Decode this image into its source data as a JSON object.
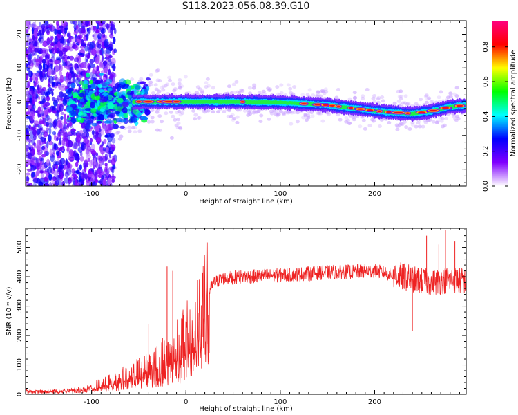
{
  "figure": {
    "title": "S118.2023.056.08.39.G10"
  },
  "chart_data": [
    {
      "type": "heatmap",
      "name": "spectrogram",
      "xlabel": "Height of straight line (km)",
      "ylabel": "Frequency (Hz)",
      "xlim": [
        -170,
        297
      ],
      "ylim": [
        -25,
        24
      ],
      "xticks": [
        -100,
        0,
        100,
        200
      ],
      "yticks": [
        -20,
        -10,
        0,
        10,
        20
      ],
      "grid": false,
      "colorbar": {
        "label": "Normalized spectral amplitude",
        "range": [
          0.0,
          0.95
        ],
        "ticks": [
          0.0,
          0.2,
          0.4,
          0.6,
          0.8
        ],
        "tick_labels": [
          "0.0",
          "0.2",
          "0.4",
          "0.6",
          "0.8"
        ],
        "colormap": [
          "#ffffff",
          "#8000ff",
          "#0000ff",
          "#00ffff",
          "#00ff00",
          "#ffff00",
          "#ff0000",
          "#ff0080"
        ]
      },
      "ridge_centerline_hz": [
        {
          "x": -100,
          "y": -0.5
        },
        {
          "x": -50,
          "y": 0.0
        },
        {
          "x": 0,
          "y": 0.0
        },
        {
          "x": 50,
          "y": 0.0
        },
        {
          "x": 100,
          "y": -0.2
        },
        {
          "x": 150,
          "y": -1.0
        },
        {
          "x": 180,
          "y": -2.0
        },
        {
          "x": 210,
          "y": -3.0
        },
        {
          "x": 240,
          "y": -3.5
        },
        {
          "x": 260,
          "y": -2.8
        },
        {
          "x": 280,
          "y": -1.5
        },
        {
          "x": 297,
          "y": -1.0
        }
      ]
    },
    {
      "type": "line",
      "name": "snr",
      "xlabel": "Height of straight line (km)",
      "ylabel": "SNR (10 * v/v)",
      "xlim": [
        -170,
        297
      ],
      "ylim": [
        0,
        565
      ],
      "xticks": [
        -100,
        0,
        100,
        200
      ],
      "yticks": [
        0,
        100,
        200,
        300,
        400,
        500
      ],
      "grid": false,
      "series": [
        {
          "color": "#ee2222",
          "envelope": [
            {
              "x": -170,
              "y": 12
            },
            {
              "x": -140,
              "y": 12
            },
            {
              "x": -120,
              "y": 15
            },
            {
              "x": -100,
              "y": 25
            },
            {
              "x": -80,
              "y": 45
            },
            {
              "x": -60,
              "y": 70
            },
            {
              "x": -40,
              "y": 95
            },
            {
              "x": -20,
              "y": 140
            },
            {
              "x": -10,
              "y": 175
            },
            {
              "x": 0,
              "y": 200
            },
            {
              "x": 10,
              "y": 250
            },
            {
              "x": 20,
              "y": 330
            },
            {
              "x": 30,
              "y": 380
            },
            {
              "x": 40,
              "y": 395
            },
            {
              "x": 60,
              "y": 400
            },
            {
              "x": 100,
              "y": 405
            },
            {
              "x": 150,
              "y": 415
            },
            {
              "x": 200,
              "y": 420
            },
            {
              "x": 230,
              "y": 400
            },
            {
              "x": 260,
              "y": 380
            },
            {
              "x": 280,
              "y": 390
            },
            {
              "x": 297,
              "y": 385
            }
          ],
          "spikes": [
            {
              "x": -40,
              "y": 240
            },
            {
              "x": -20,
              "y": 435
            },
            {
              "x": -14,
              "y": 420
            },
            {
              "x": 240,
              "y": 215
            },
            {
              "x": 255,
              "y": 540
            },
            {
              "x": 268,
              "y": 510
            },
            {
              "x": 275,
              "y": 560
            },
            {
              "x": 285,
              "y": 520
            }
          ]
        }
      ]
    }
  ]
}
